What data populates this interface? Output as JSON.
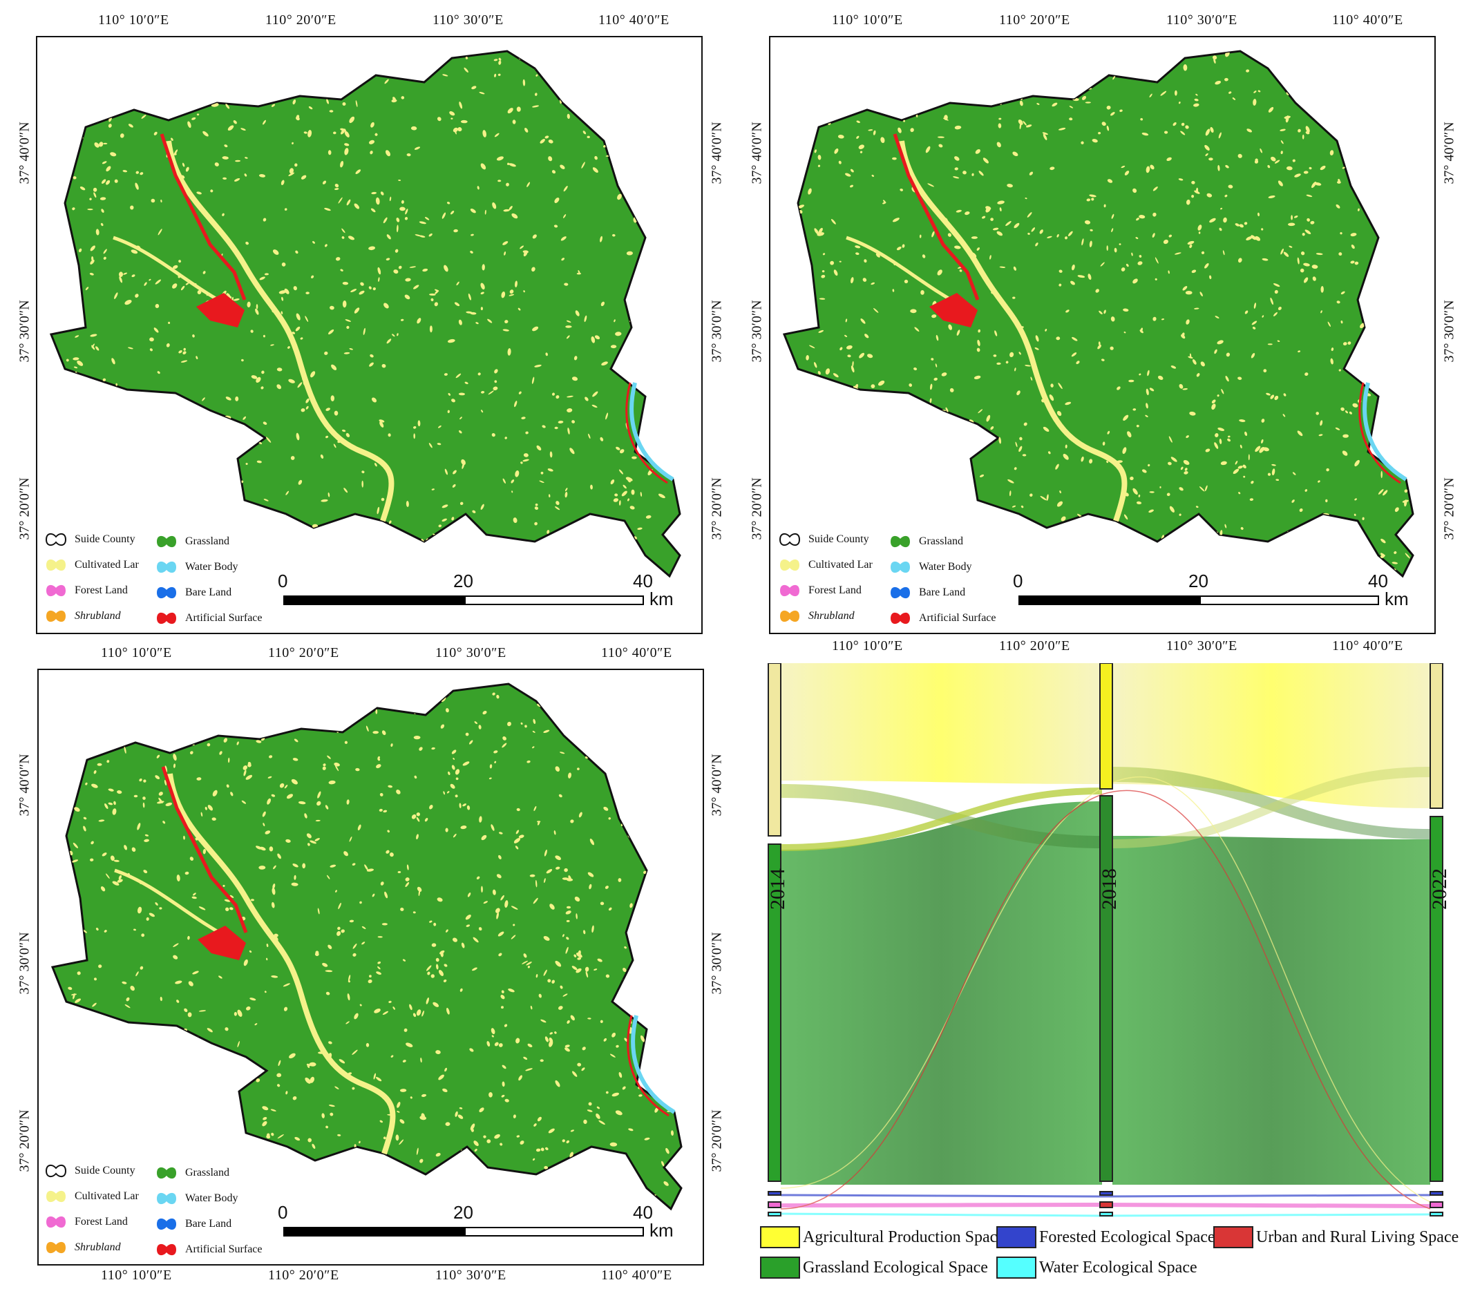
{
  "maps": [
    {
      "top_labels": [
        "110°  10′0″E",
        "110°  20′0″E",
        "110°  30′0″E",
        "110°  40′0″E"
      ],
      "side_labels": [
        "37°  40′0″N",
        "37°  30′0″N",
        "37°  20′0″N"
      ]
    },
    {
      "top_labels": [
        "110°  10′0″E",
        "110°  20′0″E",
        "110°  30′0″E",
        "110°  40′0″E"
      ],
      "bottom_labels": [
        "110°  10′0″E",
        "110°  20′0″E",
        "110°  30′0″E",
        "110°  40′0″E"
      ],
      "side_labels": [
        "37°  40′0″N",
        "37°  30′0″N",
        "37°  20′0″N"
      ]
    },
    {
      "top_labels": [
        "110°  10′0″E",
        "110°  20′0″E",
        "110°  30′0″E",
        "110°  40′0″E"
      ],
      "bottom_labels": [
        "110°  10′0″E",
        "110°  20′0″E",
        "110°  30′0″E",
        "110°  40′0″E"
      ],
      "side_labels": [
        "37°  40′0″N",
        "37°  30′0″N",
        "37°  20′0″N"
      ]
    }
  ],
  "map_legend": [
    {
      "label": "Suide County",
      "color": "#ffffff"
    },
    {
      "label": "Cultivated Lar",
      "color": "#f5f28a"
    },
    {
      "label": "Forest Land",
      "color": "#f06ad2"
    },
    {
      "label": "Shrubland",
      "color": "#f5a623"
    },
    {
      "label": "Grassland",
      "color": "#39a12a"
    },
    {
      "label": "Water Body",
      "color": "#6ad6f2"
    },
    {
      "label": "Bare Land",
      "color": "#1a6fe8"
    },
    {
      "label": "Artificial Surface",
      "color": "#e8191e"
    }
  ],
  "scale_bar": {
    "labels": [
      "0",
      "20",
      "40"
    ],
    "unit": "km"
  },
  "sankey": {
    "years": [
      "2014",
      "2018",
      "2022"
    ],
    "legend": [
      {
        "label": "Agricultural Production Space",
        "color": "#ffff33"
      },
      {
        "label": "Forested Ecological Space",
        "color": "#3344cc"
      },
      {
        "label": "Urban and Rural Living Space",
        "color": "#d93636"
      },
      {
        "label": "Grassland Ecological Space",
        "color": "#2aa02a"
      },
      {
        "label": "Water Ecological Space",
        "color": "#55ffff"
      }
    ]
  }
}
